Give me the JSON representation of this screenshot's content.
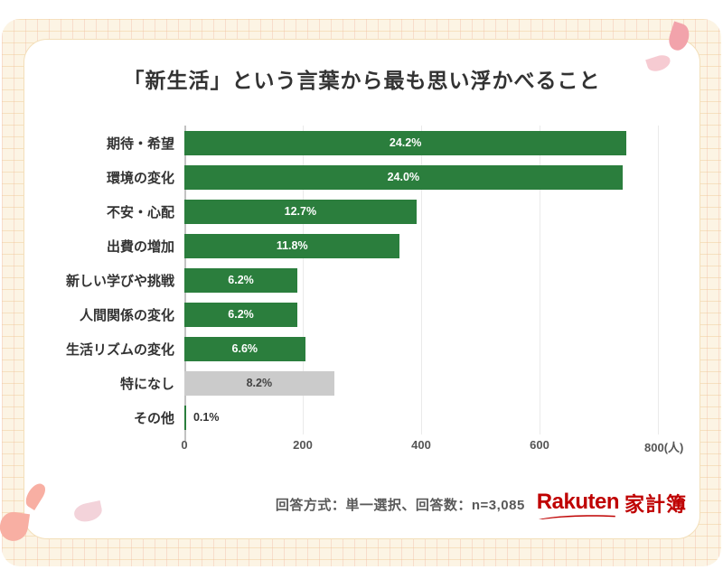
{
  "chart_data": {
    "type": "bar",
    "orientation": "horizontal",
    "title": "「新生活」という言葉から最も思い浮かべること",
    "categories": [
      "期待・希望",
      "環境の変化",
      "不安・心配",
      "出費の増加",
      "新しい学びや挑戦",
      "人間関係の変化",
      "生活リズムの変化",
      "特になし",
      "その他"
    ],
    "values": [
      24.2,
      24.0,
      12.7,
      11.8,
      6.2,
      6.2,
      6.6,
      8.2,
      0.1
    ],
    "value_labels": [
      "24.2%",
      "24.0%",
      "12.7%",
      "11.8%",
      "6.2%",
      "6.2%",
      "6.6%",
      "8.2%",
      "0.1%"
    ],
    "approx_counts_people": [
      747,
      740,
      392,
      364,
      191,
      191,
      204,
      253,
      3
    ],
    "xlim": [
      0,
      800
    ],
    "x_ticks": [
      0,
      200,
      400,
      600,
      800
    ],
    "x_tick_labels": [
      "0",
      "200",
      "400",
      "600",
      "800(人)"
    ],
    "x_unit": "人",
    "grid": "vertical-only",
    "legend": "none",
    "grey_category_index": 7,
    "colors": {
      "bar_default": "#2B7E3D",
      "bar_grey": "#CBCBCB",
      "bar_label_inside": "#FFFFFF",
      "bar_label_on_grey": "#444444",
      "bar_label_outside": "#333333"
    }
  },
  "footer": {
    "note": "回答方式：単一選択、回答数：n=3,085",
    "logo_text_en": "Rakuten",
    "logo_text_ja": "家計簿",
    "logo_color": "#BF0000"
  },
  "theme": {
    "background_paper": "#FCF4E4",
    "card_background": "#FFFFFF",
    "petal_salmon": "#F8AFA3",
    "petal_pink": "#F2A3AB",
    "petal_light_pink": "#F3D3DA"
  }
}
